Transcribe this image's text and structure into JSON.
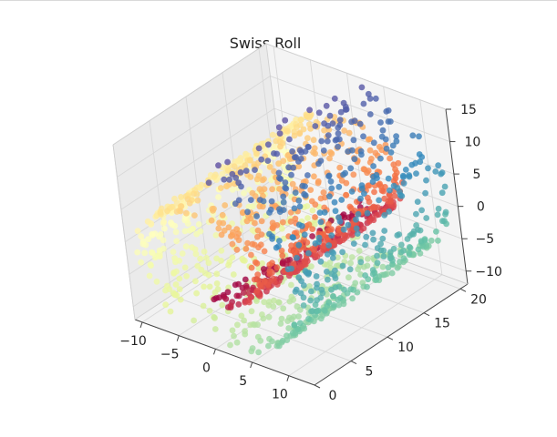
{
  "chart_data": {
    "type": "scatter",
    "projection": "3d",
    "title": "Swiss Roll",
    "xlabel": "",
    "ylabel": "",
    "zlabel": "",
    "xlim": [
      -11,
      13.5
    ],
    "ylim": [
      0,
      21
    ],
    "zlim": [
      -12,
      15
    ],
    "x_ticks": [
      -10,
      -5,
      0,
      5,
      10
    ],
    "y_ticks": [
      0,
      5,
      10,
      15,
      20
    ],
    "z_ticks": [
      -10,
      -5,
      0,
      5,
      10,
      15
    ],
    "x_tick_labels": [
      "−10",
      "−5",
      "0",
      "5",
      "10"
    ],
    "y_tick_labels": [
      "0",
      "5",
      "10",
      "15",
      "20"
    ],
    "z_tick_labels": [
      "−10",
      "−5",
      "0",
      "5",
      "10",
      "15"
    ],
    "grid": true,
    "legend": "none",
    "colormap": "Spectral",
    "pane_color": "#f2f2f2",
    "grid_color": "#d8d8d8",
    "marker_alpha": 0.8,
    "generator": {
      "n_samples": 1500,
      "t_range": [
        4.712,
        14.137
      ],
      "x_formula": "t*cos(t)",
      "z_formula": "t*sin(t)",
      "height_range": [
        0,
        21
      ],
      "color_by": "t"
    }
  }
}
